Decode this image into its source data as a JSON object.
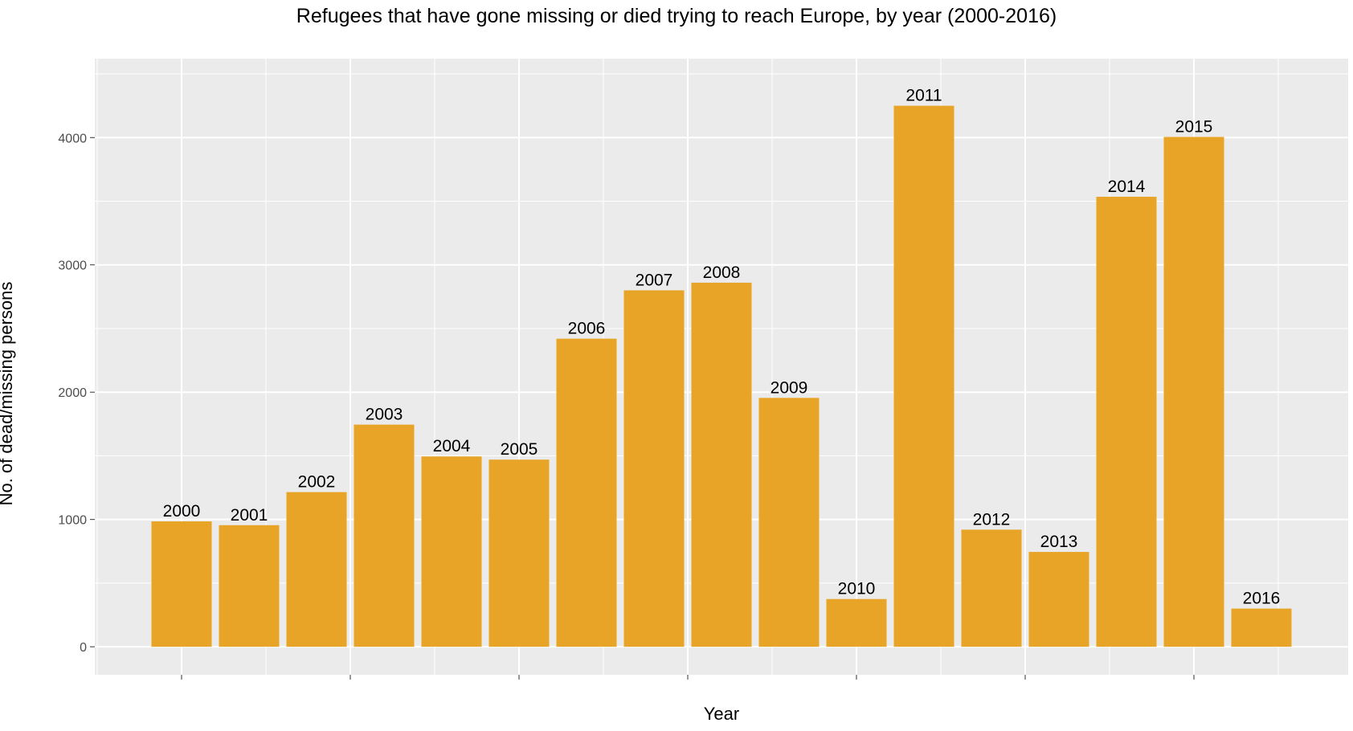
{
  "chart_data": {
    "type": "bar",
    "title": "Refugees that have gone missing or died trying to reach Europe, by year (2000-2016)",
    "xlabel": "Year",
    "ylabel": "No. of dead/missing persons",
    "categories": [
      "2000",
      "2001",
      "2002",
      "2003",
      "2004",
      "2005",
      "2006",
      "2007",
      "2008",
      "2009",
      "2010",
      "2011",
      "2012",
      "2013",
      "2014",
      "2015",
      "2016"
    ],
    "values": [
      985,
      955,
      1215,
      1745,
      1495,
      1470,
      2420,
      2800,
      2860,
      1955,
      375,
      4250,
      920,
      745,
      3535,
      4005,
      300
    ],
    "data_labels": [
      "2000",
      "2001",
      "2002",
      "2003",
      "2004",
      "2005",
      "2006",
      "2007",
      "2008",
      "2009",
      "2010",
      "2011",
      "2012",
      "2013",
      "2014",
      "2015",
      "2016"
    ],
    "yticks": [
      0,
      1000,
      2000,
      3000,
      4000
    ],
    "ylim": [
      -220,
      4620
    ],
    "grid": true,
    "legend": "none",
    "colors": {
      "bar": "#E8A427",
      "panel": "#EBEBEB",
      "grid": "#FFFFFF"
    }
  }
}
